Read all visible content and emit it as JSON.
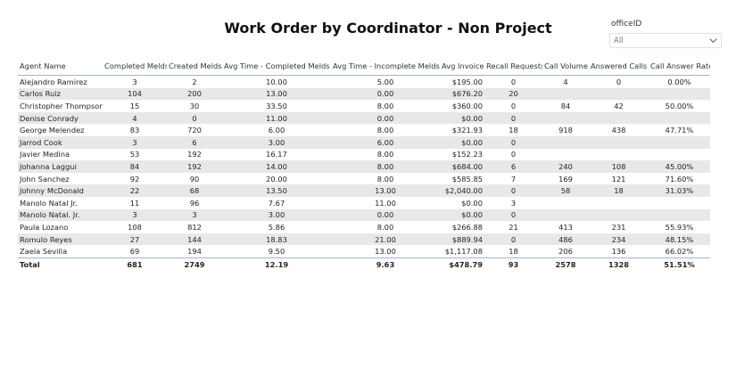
{
  "report": {
    "title": "Work Order by Coordinator - Non Project"
  },
  "slicer": {
    "label": "officeID",
    "value": "All",
    "icon": "chevron-down-icon"
  },
  "table": {
    "headers": [
      "Agent Name",
      "Completed Melds",
      "Created Melds",
      "Avg Time - Completed Melds",
      "Avg Time - Incomplete Melds",
      "Avg Invoice",
      "Recall Requests",
      "Call Volume",
      "Answered Calls",
      "Call Answer Rate"
    ],
    "rows": [
      [
        "Alejandro Ramirez",
        "3",
        "2",
        "10.00",
        "5.00",
        "$195.00",
        "0",
        "4",
        "0",
        "0.00%"
      ],
      [
        "Carlos Ruiz",
        "104",
        "200",
        "13.00",
        "0.00",
        "$676.20",
        "20",
        "",
        "",
        ""
      ],
      [
        "Christopher Thompson",
        "15",
        "30",
        "33.50",
        "8.00",
        "$360.00",
        "0",
        "84",
        "42",
        "50.00%"
      ],
      [
        "Denise Conrady",
        "4",
        "0",
        "11.00",
        "0.00",
        "$0.00",
        "0",
        "",
        "",
        ""
      ],
      [
        "George Melendez",
        "83",
        "720",
        "6.00",
        "8.00",
        "$321.93",
        "18",
        "918",
        "438",
        "47.71%"
      ],
      [
        "Jarrod Cook",
        "3",
        "6",
        "3.00",
        "6.00",
        "$0.00",
        "0",
        "",
        "",
        ""
      ],
      [
        "Javier Medina",
        "53",
        "192",
        "16.17",
        "8.00",
        "$152.23",
        "0",
        "",
        "",
        ""
      ],
      [
        "Johanna Laggui",
        "84",
        "192",
        "14.00",
        "8.00",
        "$684.00",
        "6",
        "240",
        "108",
        "45.00%"
      ],
      [
        "John Sanchez",
        "92",
        "90",
        "20.00",
        "8.00",
        "$585.85",
        "7",
        "169",
        "121",
        "71.60%"
      ],
      [
        "Johnny McDonald",
        "22",
        "68",
        "13.50",
        "13.00",
        "$2,040.00",
        "0",
        "58",
        "18",
        "31.03%"
      ],
      [
        "Manolo Natal Jr.",
        "11",
        "96",
        "7.67",
        "11.00",
        "$0.00",
        "3",
        "",
        "",
        ""
      ],
      [
        "Manolo Natal. Jr.",
        "3",
        "3",
        "3.00",
        "0.00",
        "$0.00",
        "0",
        "",
        "",
        ""
      ],
      [
        "Paula Lozano",
        "108",
        "812",
        "5.86",
        "8.00",
        "$266.88",
        "21",
        "413",
        "231",
        "55.93%"
      ],
      [
        "Romulo Reyes",
        "27",
        "144",
        "18.83",
        "21.00",
        "$889.94",
        "0",
        "486",
        "234",
        "48.15%"
      ],
      [
        "Zaela Sevilla",
        "69",
        "194",
        "9.50",
        "13.00",
        "$1,117.08",
        "18",
        "206",
        "136",
        "66.02%"
      ]
    ],
    "total": [
      "Total",
      "681",
      "2749",
      "12.19",
      "9.63",
      "$478.79",
      "93",
      "2578",
      "1328",
      "51.51%"
    ]
  }
}
